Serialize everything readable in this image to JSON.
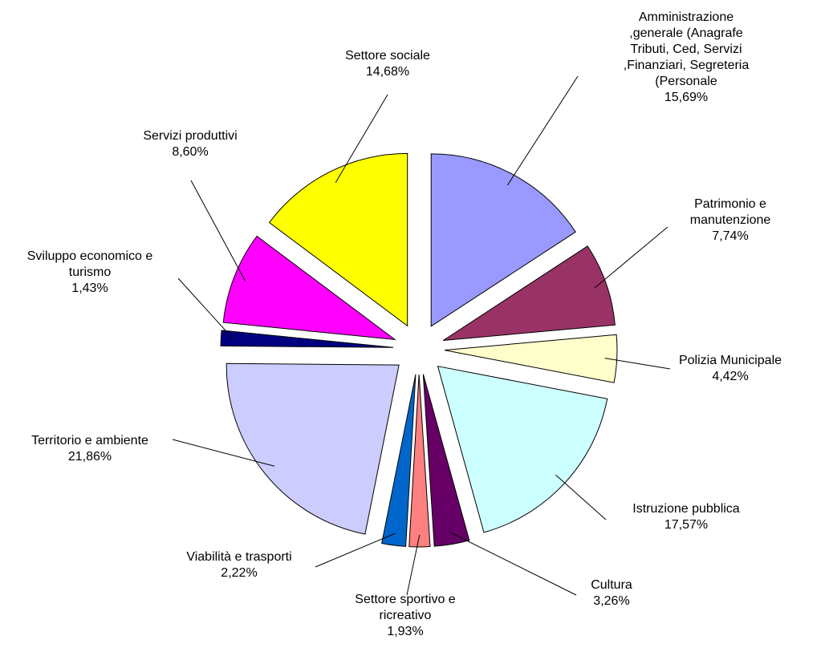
{
  "chart_data": {
    "type": "pie",
    "categories": [
      "Amministrazione\n,generale (Anagrafe\nTributi, Ced, Servizi\n,Finanziari, Segreteria\n(Personale",
      "Patrimonio e\nmanutenzione",
      "Polizia Municipale",
      "Istruzione pubblica",
      "Cultura",
      "Settore sportivo e\nricreativo",
      "Viabilità e trasporti",
      "Territorio e ambiente",
      "Sviluppo economico e\nturismo",
      "Servizi produttivi",
      "Settore sociale"
    ],
    "values": [
      15.69,
      7.74,
      4.42,
      17.57,
      3.26,
      1.93,
      2.22,
      21.86,
      1.43,
      8.6,
      14.68
    ],
    "value_labels": [
      "15,69%",
      "7,74%",
      "4,42%",
      "17,57%",
      "3,26%",
      "1,93%",
      "2,22%",
      "21,86%",
      "1,43%",
      "8,60%",
      "14,68%"
    ],
    "colors": [
      "#9999ff",
      "#993366",
      "#ffffcc",
      "#ccffff",
      "#660066",
      "#ff8080",
      "#0066cc",
      "#ccccff",
      "#000080",
      "#ff00ff",
      "#ffff00"
    ]
  }
}
